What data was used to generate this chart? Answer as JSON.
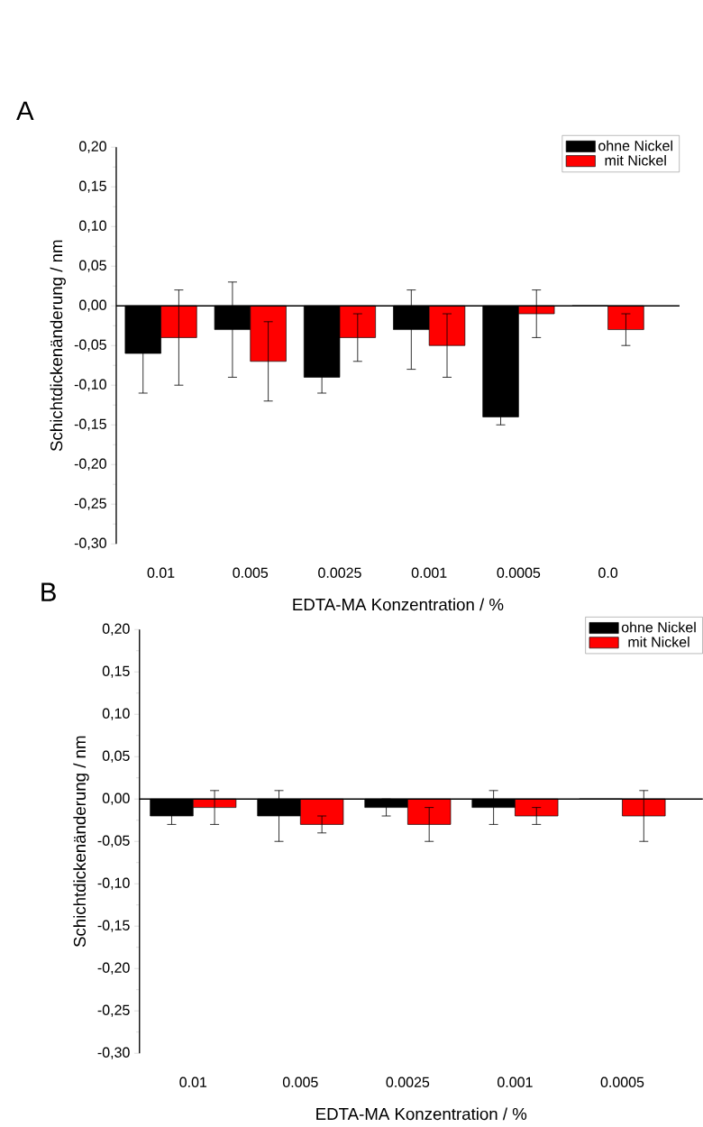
{
  "chart_data": [
    {
      "type": "bar",
      "title": "A",
      "xlabel": "EDTA-MA Konzentration / %",
      "ylabel": "Schichtdickenänderung  / nm",
      "categories": [
        "0.01",
        "0.005",
        "0.0025",
        "0.001",
        "0.0005",
        "0.0"
      ],
      "series": [
        {
          "name": "ohne Nickel",
          "color": "#000000",
          "values": [
            -0.06,
            -0.03,
            -0.09,
            -0.03,
            -0.14,
            0
          ],
          "errors": [
            0.05,
            0.06,
            0.02,
            0.05,
            0.01,
            null
          ]
        },
        {
          "name": "mit Nickel",
          "color": "#ff0000",
          "values": [
            -0.04,
            -0.07,
            -0.04,
            -0.05,
            -0.01,
            -0.03
          ],
          "errors": [
            0.06,
            0.05,
            0.03,
            0.04,
            0.03,
            0.02
          ]
        }
      ],
      "ylim": [
        -0.3,
        0.2
      ],
      "yticks": [
        {
          "value": -0.3,
          "label": "-0,30"
        },
        {
          "value": -0.25,
          "label": "-0,25"
        },
        {
          "value": -0.2,
          "label": "-0,20"
        },
        {
          "value": -0.15,
          "label": "-0,15"
        },
        {
          "value": -0.1,
          "label": "-0,10"
        },
        {
          "value": -0.05,
          "label": "-0,05"
        },
        {
          "value": 0,
          "label": "0,00"
        },
        {
          "value": 0.05,
          "label": "0,05"
        },
        {
          "value": 0.1,
          "label": "0,10"
        },
        {
          "value": 0.15,
          "label": "0,15"
        },
        {
          "value": 0.2,
          "label": "0,20"
        }
      ],
      "legend": "top right"
    },
    {
      "type": "bar",
      "title": "B",
      "xlabel": "EDTA-MA Konzentration / %",
      "ylabel": "Schichtdickenänderung  / nm",
      "categories": [
        "0.01",
        "0.005",
        "0.0025",
        "0.001",
        "0.0005"
      ],
      "series": [
        {
          "name": "ohne Nickel",
          "color": "#000000",
          "values": [
            -0.02,
            -0.02,
            -0.01,
            -0.01,
            0
          ],
          "errors": [
            0.01,
            0.03,
            0.01,
            0.02,
            null
          ]
        },
        {
          "name": "mit Nickel",
          "color": "#ff0000",
          "values": [
            -0.01,
            -0.03,
            -0.03,
            -0.02,
            -0.02
          ],
          "errors": [
            0.02,
            0.01,
            0.02,
            0.01,
            0.03
          ]
        }
      ],
      "ylim": [
        -0.3,
        0.2
      ],
      "yticks": [
        {
          "value": -0.3,
          "label": "-0,30"
        },
        {
          "value": -0.25,
          "label": "-0,25"
        },
        {
          "value": -0.2,
          "label": "-0,20"
        },
        {
          "value": -0.15,
          "label": "-0,15"
        },
        {
          "value": -0.1,
          "label": "-0,10"
        },
        {
          "value": -0.05,
          "label": "-0,05"
        },
        {
          "value": 0,
          "label": "0,00"
        },
        {
          "value": 0.05,
          "label": "0,05"
        },
        {
          "value": 0.1,
          "label": "0,10"
        },
        {
          "value": 0.15,
          "label": "0,15"
        },
        {
          "value": 0.2,
          "label": "0,20"
        }
      ],
      "legend": "top right"
    }
  ]
}
